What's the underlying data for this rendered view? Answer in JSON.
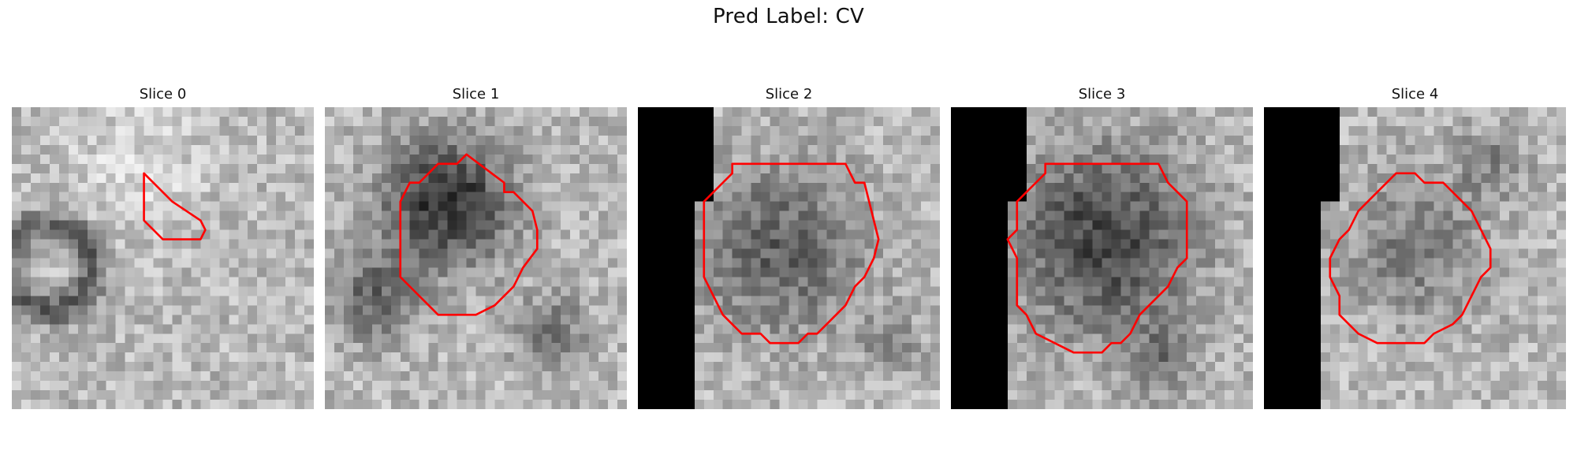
{
  "figure": {
    "title": "Pred Label: CV"
  },
  "panels": [
    {
      "title": "Slice 0",
      "mask_cols": 0,
      "mask_rows": 0,
      "blobs": [
        {
          "cx": 4,
          "cy": 17,
          "r": 6,
          "d": 90,
          "ring": true
        },
        {
          "cx": 13,
          "cy": 6,
          "r": 8,
          "d": -30
        }
      ],
      "contour": [
        [
          14,
          7
        ],
        [
          17,
          10
        ],
        [
          20,
          12
        ],
        [
          20.5,
          13
        ],
        [
          20,
          14
        ],
        [
          16,
          14
        ],
        [
          15,
          13
        ],
        [
          14,
          12
        ],
        [
          14,
          10
        ],
        [
          14,
          7.5
        ]
      ]
    },
    {
      "title": "Slice 1",
      "mask_cols": 0,
      "mask_rows": 0,
      "blobs": [
        {
          "cx": 13,
          "cy": 10,
          "r": 7,
          "d": 140
        },
        {
          "cx": 5,
          "cy": 20,
          "r": 5,
          "d": 80
        },
        {
          "cx": 24,
          "cy": 24,
          "r": 4,
          "d": 70
        }
      ],
      "contour": [
        [
          15,
          5
        ],
        [
          17,
          6.5
        ],
        [
          19,
          8
        ],
        [
          19,
          9
        ],
        [
          20,
          9
        ],
        [
          22,
          11
        ],
        [
          22.5,
          13
        ],
        [
          22.5,
          15
        ],
        [
          21,
          17
        ],
        [
          20,
          19
        ],
        [
          18,
          21
        ],
        [
          17,
          21.5
        ],
        [
          16,
          22
        ],
        [
          12,
          22
        ],
        [
          11,
          21
        ],
        [
          10,
          20
        ],
        [
          8,
          18
        ],
        [
          8,
          16
        ],
        [
          8,
          10
        ],
        [
          9,
          8
        ],
        [
          10,
          8
        ],
        [
          12,
          6
        ],
        [
          14,
          6
        ]
      ]
    },
    {
      "title": "Slice 2",
      "mask_cols": 8,
      "mask_rows": 10,
      "blobs": [
        {
          "cx": 15,
          "cy": 15,
          "r": 9,
          "d": 90
        },
        {
          "cx": 27,
          "cy": 25,
          "r": 3,
          "d": 60
        }
      ],
      "contour": [
        [
          10,
          6
        ],
        [
          22,
          6
        ],
        [
          22.5,
          7
        ],
        [
          23,
          8
        ],
        [
          24,
          8
        ],
        [
          24.5,
          10
        ],
        [
          25,
          12
        ],
        [
          25.5,
          14
        ],
        [
          25,
          16
        ],
        [
          24,
          18
        ],
        [
          23,
          19
        ],
        [
          22,
          21
        ],
        [
          20,
          23
        ],
        [
          19,
          24
        ],
        [
          18,
          24
        ],
        [
          17,
          25
        ],
        [
          14,
          25
        ],
        [
          13,
          24
        ],
        [
          11,
          24
        ],
        [
          10,
          23
        ],
        [
          9,
          22
        ],
        [
          8,
          20
        ],
        [
          7,
          18
        ],
        [
          7,
          10
        ],
        [
          8,
          9
        ],
        [
          9,
          8
        ],
        [
          10,
          7
        ]
      ]
    },
    {
      "title": "Slice 3",
      "mask_cols": 8,
      "mask_rows": 10,
      "blobs": [
        {
          "cx": 16,
          "cy": 14,
          "r": 10,
          "d": 120
        },
        {
          "cx": 22,
          "cy": 27,
          "r": 4,
          "d": 60
        }
      ],
      "contour": [
        [
          10,
          6
        ],
        [
          22,
          6
        ],
        [
          23,
          8
        ],
        [
          24,
          9
        ],
        [
          25,
          10
        ],
        [
          25,
          16
        ],
        [
          24,
          17
        ],
        [
          23,
          19
        ],
        [
          21,
          21
        ],
        [
          20,
          22
        ],
        [
          19,
          24
        ],
        [
          18,
          25
        ],
        [
          17,
          25
        ],
        [
          16,
          26
        ],
        [
          13,
          26
        ],
        [
          11,
          25
        ],
        [
          9,
          24
        ],
        [
          8,
          22
        ],
        [
          7,
          21
        ],
        [
          7,
          19
        ],
        [
          7,
          16
        ],
        [
          6,
          14
        ],
        [
          7,
          13
        ],
        [
          7,
          10
        ],
        [
          8,
          9
        ],
        [
          9,
          8
        ],
        [
          10,
          7
        ]
      ]
    },
    {
      "title": "Slice 4",
      "mask_cols": 8,
      "mask_rows": 10,
      "blobs": [
        {
          "cx": 16,
          "cy": 15,
          "r": 8,
          "d": 60
        },
        {
          "cx": 24,
          "cy": 6,
          "r": 4,
          "d": 50
        }
      ],
      "contour": [
        [
          14,
          7
        ],
        [
          16,
          7
        ],
        [
          17,
          8
        ],
        [
          19,
          8
        ],
        [
          21,
          10
        ],
        [
          22,
          11
        ],
        [
          23,
          13
        ],
        [
          24,
          15
        ],
        [
          24,
          17
        ],
        [
          23,
          18
        ],
        [
          22,
          20
        ],
        [
          21,
          22
        ],
        [
          20,
          23
        ],
        [
          18,
          24
        ],
        [
          17,
          25
        ],
        [
          12,
          25
        ],
        [
          10,
          24
        ],
        [
          9,
          23
        ],
        [
          8,
          22
        ],
        [
          8,
          20
        ],
        [
          7,
          18
        ],
        [
          7,
          16
        ],
        [
          8,
          14
        ],
        [
          9,
          13
        ],
        [
          10,
          11
        ],
        [
          11,
          10
        ],
        [
          12,
          9
        ]
      ]
    }
  ],
  "contour_color": "#ff0000",
  "grid_size": 32
}
